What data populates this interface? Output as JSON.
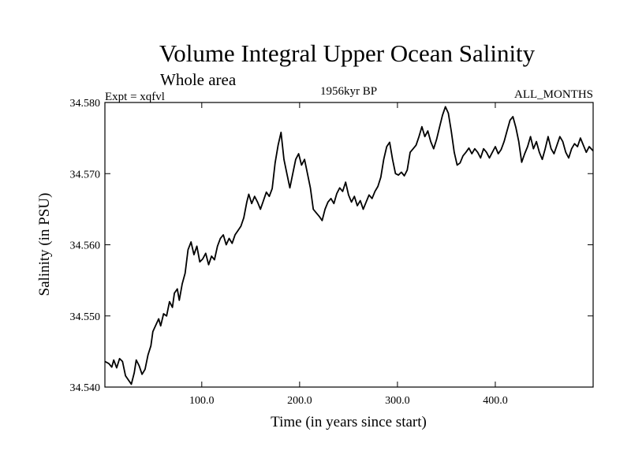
{
  "chart_data": {
    "type": "line",
    "title": "Volume Integral Upper Ocean Salinity",
    "subtitle": "Whole area",
    "left_label": "Expt = xqfvl",
    "center_label": "1956kyr BP",
    "right_label": "ALL_MONTHS",
    "xlabel": "Time (in years since start)",
    "ylabel": "Salinity (in PSU)",
    "xlim": [
      1,
      500
    ],
    "ylim": [
      34.54,
      34.58
    ],
    "x_ticks": [
      {
        "value": 100,
        "label": "100.0"
      },
      {
        "value": 200,
        "label": "200.0"
      },
      {
        "value": 300,
        "label": "300.0"
      },
      {
        "value": 400,
        "label": "400.0"
      }
    ],
    "y_ticks": [
      {
        "value": 34.54,
        "label": "34.540"
      },
      {
        "value": 34.55,
        "label": "34.550"
      },
      {
        "value": 34.56,
        "label": "34.560"
      },
      {
        "value": 34.57,
        "label": "34.570"
      },
      {
        "value": 34.58,
        "label": "34.580"
      }
    ],
    "series": [
      {
        "name": "salinity",
        "color": "#000000",
        "points": [
          [
            1,
            34.5436
          ],
          [
            5,
            34.5433
          ],
          [
            8,
            34.5428
          ],
          [
            10,
            34.5438
          ],
          [
            13,
            34.5427
          ],
          [
            16,
            34.544
          ],
          [
            19,
            34.5436
          ],
          [
            22,
            34.5416
          ],
          [
            25,
            34.541
          ],
          [
            28,
            34.5404
          ],
          [
            31,
            34.542
          ],
          [
            33,
            34.5438
          ],
          [
            36,
            34.543
          ],
          [
            39,
            34.5418
          ],
          [
            42,
            34.5425
          ],
          [
            45,
            34.5445
          ],
          [
            48,
            34.5458
          ],
          [
            50,
            34.5478
          ],
          [
            53,
            34.5487
          ],
          [
            56,
            34.5496
          ],
          [
            58,
            34.5486
          ],
          [
            61,
            34.5503
          ],
          [
            64,
            34.55
          ],
          [
            67,
            34.552
          ],
          [
            70,
            34.5512
          ],
          [
            72,
            34.5532
          ],
          [
            75,
            34.5538
          ],
          [
            77,
            34.5522
          ],
          [
            80,
            34.5545
          ],
          [
            83,
            34.556
          ],
          [
            86,
            34.5593
          ],
          [
            89,
            34.5604
          ],
          [
            92,
            34.5586
          ],
          [
            95,
            34.5598
          ],
          [
            98,
            34.5576
          ],
          [
            101,
            34.558
          ],
          [
            104,
            34.5588
          ],
          [
            107,
            34.5572
          ],
          [
            110,
            34.5584
          ],
          [
            113,
            34.5579
          ],
          [
            116,
            34.5598
          ],
          [
            119,
            34.5609
          ],
          [
            122,
            34.5614
          ],
          [
            125,
            34.56
          ],
          [
            128,
            34.5609
          ],
          [
            131,
            34.5602
          ],
          [
            134,
            34.5614
          ],
          [
            137,
            34.562
          ],
          [
            140,
            34.5626
          ],
          [
            143,
            34.5638
          ],
          [
            146,
            34.566
          ],
          [
            148,
            34.5671
          ],
          [
            151,
            34.5658
          ],
          [
            154,
            34.5668
          ],
          [
            157,
            34.566
          ],
          [
            160,
            34.565
          ],
          [
            163,
            34.5662
          ],
          [
            166,
            34.5674
          ],
          [
            169,
            34.5668
          ],
          [
            172,
            34.5679
          ],
          [
            175,
            34.5715
          ],
          [
            178,
            34.574
          ],
          [
            181,
            34.5758
          ],
          [
            184,
            34.572
          ],
          [
            187,
            34.57
          ],
          [
            190,
            34.568
          ],
          [
            193,
            34.57
          ],
          [
            196,
            34.572
          ],
          [
            199,
            34.5728
          ],
          [
            202,
            34.5712
          ],
          [
            205,
            34.572
          ],
          [
            208,
            34.57
          ],
          [
            211,
            34.568
          ],
          [
            214,
            34.565
          ],
          [
            217,
            34.5645
          ],
          [
            220,
            34.564
          ],
          [
            223,
            34.5634
          ],
          [
            226,
            34.565
          ],
          [
            229,
            34.566
          ],
          [
            232,
            34.5665
          ],
          [
            235,
            34.5658
          ],
          [
            238,
            34.5672
          ],
          [
            241,
            34.568
          ],
          [
            244,
            34.5675
          ],
          [
            247,
            34.5688
          ],
          [
            250,
            34.567
          ],
          [
            253,
            34.566
          ],
          [
            256,
            34.5668
          ],
          [
            259,
            34.5655
          ],
          [
            262,
            34.5662
          ],
          [
            265,
            34.565
          ],
          [
            268,
            34.566
          ],
          [
            271,
            34.567
          ],
          [
            274,
            34.5665
          ],
          [
            277,
            34.5675
          ],
          [
            280,
            34.5682
          ],
          [
            283,
            34.5695
          ],
          [
            286,
            34.572
          ],
          [
            289,
            34.5738
          ],
          [
            292,
            34.5744
          ],
          [
            295,
            34.572
          ],
          [
            298,
            34.57
          ],
          [
            301,
            34.5698
          ],
          [
            304,
            34.5702
          ],
          [
            307,
            34.5697
          ],
          [
            310,
            34.5705
          ],
          [
            313,
            34.573
          ],
          [
            316,
            34.5735
          ],
          [
            319,
            34.574
          ],
          [
            322,
            34.5752
          ],
          [
            325,
            34.5766
          ],
          [
            328,
            34.5752
          ],
          [
            331,
            34.576
          ],
          [
            334,
            34.5745
          ],
          [
            337,
            34.5735
          ],
          [
            340,
            34.5748
          ],
          [
            343,
            34.5765
          ],
          [
            346,
            34.5782
          ],
          [
            349,
            34.5794
          ],
          [
            352,
            34.5785
          ],
          [
            355,
            34.576
          ],
          [
            358,
            34.573
          ],
          [
            361,
            34.5712
          ],
          [
            364,
            34.5715
          ],
          [
            367,
            34.5725
          ],
          [
            370,
            34.573
          ],
          [
            373,
            34.5736
          ],
          [
            376,
            34.5728
          ],
          [
            379,
            34.5735
          ],
          [
            382,
            34.573
          ],
          [
            385,
            34.5722
          ],
          [
            388,
            34.5735
          ],
          [
            391,
            34.573
          ],
          [
            394,
            34.5722
          ],
          [
            397,
            34.573
          ],
          [
            400,
            34.5738
          ],
          [
            403,
            34.5728
          ],
          [
            406,
            34.5734
          ],
          [
            409,
            34.5745
          ],
          [
            412,
            34.576
          ],
          [
            415,
            34.5775
          ],
          [
            418,
            34.578
          ],
          [
            421,
            34.5765
          ],
          [
            424,
            34.5745
          ],
          [
            427,
            34.5716
          ],
          [
            430,
            34.5728
          ],
          [
            433,
            34.5738
          ],
          [
            436,
            34.5752
          ],
          [
            439,
            34.5735
          ],
          [
            442,
            34.5745
          ],
          [
            445,
            34.573
          ],
          [
            448,
            34.572
          ],
          [
            451,
            34.5735
          ],
          [
            454,
            34.5752
          ],
          [
            457,
            34.5735
          ],
          [
            460,
            34.5728
          ],
          [
            463,
            34.574
          ],
          [
            466,
            34.5752
          ],
          [
            469,
            34.5745
          ],
          [
            472,
            34.573
          ],
          [
            475,
            34.5722
          ],
          [
            478,
            34.5735
          ],
          [
            481,
            34.5742
          ],
          [
            484,
            34.5738
          ],
          [
            487,
            34.575
          ],
          [
            490,
            34.574
          ],
          [
            493,
            34.573
          ],
          [
            496,
            34.5738
          ],
          [
            500,
            34.5732
          ]
        ]
      }
    ]
  }
}
